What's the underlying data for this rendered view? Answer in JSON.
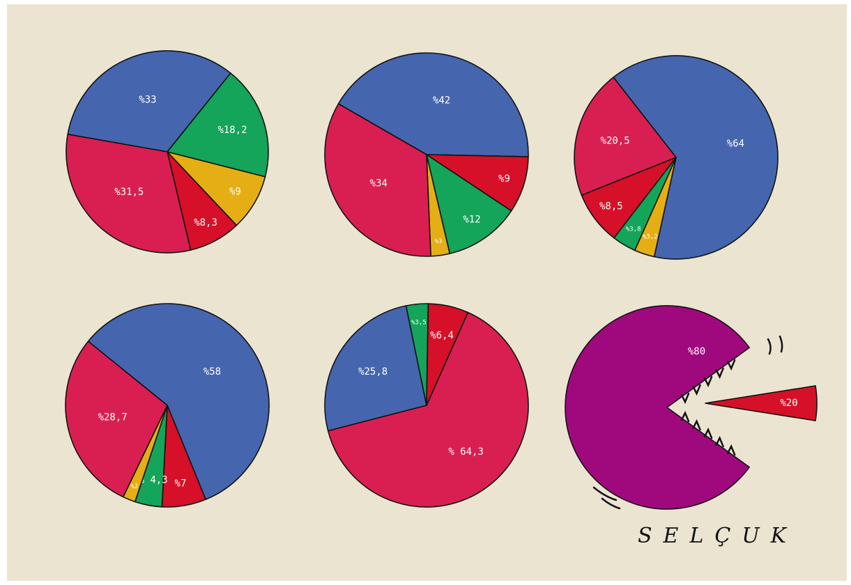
{
  "colors": {
    "blue": "#4566ae",
    "pink": "#d91f51",
    "red": "#d61028",
    "green": "#14a45a",
    "yellow": "#e5ae14",
    "purple": "#a0097d",
    "background": "#ebe4d1"
  },
  "chart_data": [
    {
      "type": "pie",
      "slices": [
        {
          "label": "%33",
          "value": 33,
          "color": "#4566ae"
        },
        {
          "label": "%18,2",
          "value": 18.2,
          "color": "#14a45a"
        },
        {
          "label": "%9",
          "value": 9,
          "color": "#e5ae14"
        },
        {
          "label": "%8,3",
          "value": 8.3,
          "color": "#d61028"
        },
        {
          "label": "%31,5",
          "value": 31.5,
          "color": "#d91f51"
        }
      ]
    },
    {
      "type": "pie",
      "slices": [
        {
          "label": "%42",
          "value": 42,
          "color": "#4566ae"
        },
        {
          "label": "%9",
          "value": 9,
          "color": "#d61028"
        },
        {
          "label": "%12",
          "value": 12,
          "color": "#14a45a"
        },
        {
          "label": "%3",
          "value": 3,
          "color": "#e5ae14"
        },
        {
          "label": "%34",
          "value": 34,
          "color": "#d91f51"
        }
      ]
    },
    {
      "type": "pie",
      "slices": [
        {
          "label": "%64",
          "value": 64,
          "color": "#4566ae"
        },
        {
          "label": "%3,2",
          "value": 3.2,
          "color": "#e5ae14"
        },
        {
          "label": "%3,8",
          "value": 3.8,
          "color": "#14a45a"
        },
        {
          "label": "%8,5",
          "value": 8.5,
          "color": "#d61028"
        },
        {
          "label": "%20,5",
          "value": 20.5,
          "color": "#d91f51"
        }
      ]
    },
    {
      "type": "pie",
      "slices": [
        {
          "label": "%58",
          "value": 58,
          "color": "#4566ae"
        },
        {
          "label": "%7",
          "value": 7,
          "color": "#d61028"
        },
        {
          "label": "% 4,3",
          "value": 4.3,
          "color": "#14a45a"
        },
        {
          "label": "%2",
          "value": 2,
          "color": "#e5ae14"
        },
        {
          "label": "%28,7",
          "value": 28.7,
          "color": "#d91f51"
        }
      ]
    },
    {
      "type": "pie",
      "slices": [
        {
          "label": "% 64,3",
          "value": 64.3,
          "color": "#d91f51"
        },
        {
          "label": "%25,8",
          "value": 25.8,
          "color": "#4566ae"
        },
        {
          "label": "%3,5",
          "value": 3.5,
          "color": "#14a45a"
        },
        {
          "label": "%6,4",
          "value": 6.4,
          "color": "#d61028"
        }
      ]
    },
    {
      "type": "pie",
      "slices": [
        {
          "label": "%80",
          "value": 80,
          "color": "#a0097d"
        },
        {
          "label": "%20",
          "value": 20,
          "color": "#d61028"
        }
      ]
    }
  ],
  "signature": "SELÇUK"
}
